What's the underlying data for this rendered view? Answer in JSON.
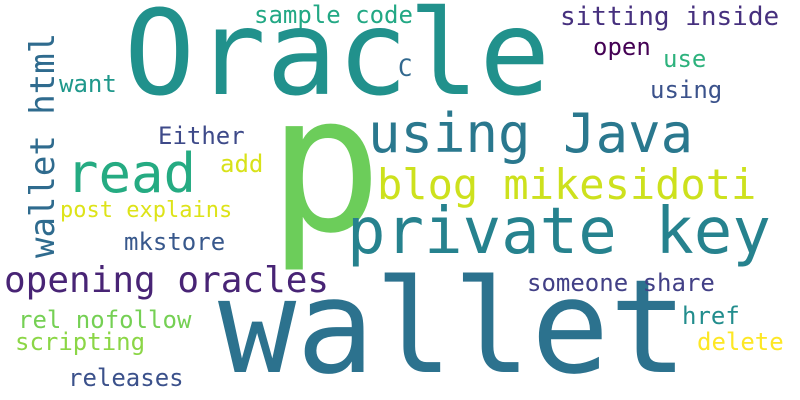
{
  "words": [
    {
      "text": "p",
      "color": "#6ccd5a"
    },
    {
      "text": "wallet",
      "color": "#2c728e"
    },
    {
      "text": "Oracle",
      "color": "#21918c"
    },
    {
      "text": "private key",
      "color": "#26828e"
    },
    {
      "text": "using Java",
      "color": "#2a788e"
    },
    {
      "text": "read",
      "color": "#25ab82"
    },
    {
      "text": "blog mikesidoti",
      "color": "#cde11d"
    },
    {
      "text": "opening oracles",
      "color": "#482475"
    },
    {
      "text": "wallet html",
      "color": "#2f6b8e"
    },
    {
      "text": "sample code",
      "color": "#22a884"
    },
    {
      "text": "sitting inside",
      "color": "#46307e"
    },
    {
      "text": "open",
      "color": "#440154"
    },
    {
      "text": "use",
      "color": "#2db27d"
    },
    {
      "text": "C",
      "color": "#31688e"
    },
    {
      "text": "want",
      "color": "#1f988b"
    },
    {
      "text": "using",
      "color": "#3b528b"
    },
    {
      "text": "Either",
      "color": "#3e4a89"
    },
    {
      "text": "add",
      "color": "#d8e219"
    },
    {
      "text": "post explains",
      "color": "#dde318"
    },
    {
      "text": "mkstore",
      "color": "#38588c"
    },
    {
      "text": "someone share",
      "color": "#424086"
    },
    {
      "text": "href",
      "color": "#228d8d"
    },
    {
      "text": "rel nofollow",
      "color": "#75d054"
    },
    {
      "text": "scripting",
      "color": "#8bd646"
    },
    {
      "text": "delete",
      "color": "#fde725"
    },
    {
      "text": "releases",
      "color": "#3b518b"
    }
  ]
}
